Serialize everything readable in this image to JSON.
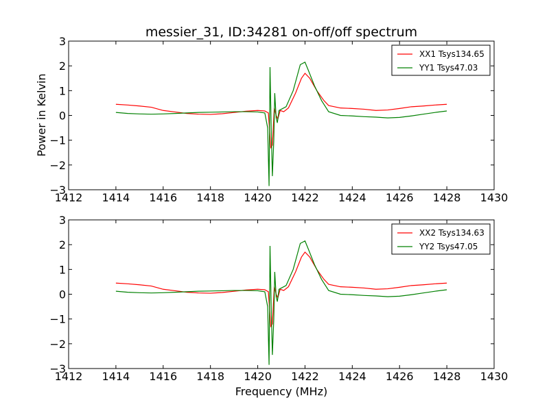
{
  "title": "messier_31, ID:34281 on-off/off spectrum",
  "ylabel": "Power in Kelvin",
  "xlabel": "Frequency (MHz)",
  "chart_data": [
    {
      "type": "line",
      "xlim": [
        1412,
        1430
      ],
      "ylim": [
        -3,
        3
      ],
      "xticks": [
        1412,
        1414,
        1416,
        1418,
        1420,
        1422,
        1424,
        1426,
        1428,
        1430
      ],
      "yticks": [
        -3,
        -2,
        -1,
        0,
        1,
        2,
        3
      ],
      "xtick_labels": [
        "1412",
        "1414",
        "1416",
        "1418",
        "1420",
        "1422",
        "1424",
        "1426",
        "1428",
        "1430"
      ],
      "ytick_labels": [
        "−3",
        "−2",
        "−1",
        "0",
        "1",
        "2",
        "3"
      ],
      "legend_placement": "top-right",
      "series": [
        {
          "name": "XX1 Tsys134.65",
          "color": "#ff0000",
          "points": [
            [
              1414.0,
              0.45
            ],
            [
              1414.5,
              0.42
            ],
            [
              1415.0,
              0.38
            ],
            [
              1415.5,
              0.33
            ],
            [
              1416.0,
              0.2
            ],
            [
              1416.5,
              0.14
            ],
            [
              1417.0,
              0.08
            ],
            [
              1417.5,
              0.05
            ],
            [
              1418.0,
              0.04
            ],
            [
              1418.5,
              0.07
            ],
            [
              1419.0,
              0.12
            ],
            [
              1419.5,
              0.17
            ],
            [
              1420.0,
              0.2
            ],
            [
              1420.3,
              0.18
            ],
            [
              1420.45,
              0.1
            ],
            [
              1420.55,
              -1.3
            ],
            [
              1420.62,
              -1.2
            ],
            [
              1420.7,
              0.3
            ],
            [
              1420.78,
              0.0
            ],
            [
              1420.85,
              -0.15
            ],
            [
              1420.95,
              0.2
            ],
            [
              1421.1,
              0.15
            ],
            [
              1421.3,
              0.3
            ],
            [
              1421.6,
              0.9
            ],
            [
              1421.85,
              1.5
            ],
            [
              1422.0,
              1.7
            ],
            [
              1422.2,
              1.5
            ],
            [
              1422.5,
              1.0
            ],
            [
              1422.8,
              0.6
            ],
            [
              1423.0,
              0.4
            ],
            [
              1423.5,
              0.3
            ],
            [
              1424.0,
              0.28
            ],
            [
              1424.5,
              0.25
            ],
            [
              1425.0,
              0.2
            ],
            [
              1425.5,
              0.22
            ],
            [
              1426.0,
              0.28
            ],
            [
              1426.5,
              0.35
            ],
            [
              1427.0,
              0.38
            ],
            [
              1427.5,
              0.42
            ],
            [
              1428.0,
              0.45
            ]
          ]
        },
        {
          "name": "YY1 Tsys47.03",
          "color": "#008000",
          "points": [
            [
              1414.0,
              0.12
            ],
            [
              1414.5,
              0.08
            ],
            [
              1415.0,
              0.06
            ],
            [
              1415.5,
              0.05
            ],
            [
              1416.0,
              0.06
            ],
            [
              1416.5,
              0.08
            ],
            [
              1417.0,
              0.1
            ],
            [
              1417.5,
              0.12
            ],
            [
              1418.0,
              0.13
            ],
            [
              1418.5,
              0.14
            ],
            [
              1419.0,
              0.15
            ],
            [
              1419.5,
              0.15
            ],
            [
              1420.0,
              0.14
            ],
            [
              1420.3,
              0.1
            ],
            [
              1420.42,
              -0.5
            ],
            [
              1420.48,
              -2.85
            ],
            [
              1420.52,
              1.95
            ],
            [
              1420.57,
              -0.5
            ],
            [
              1420.62,
              -2.45
            ],
            [
              1420.68,
              -1.0
            ],
            [
              1420.72,
              0.9
            ],
            [
              1420.78,
              -0.1
            ],
            [
              1420.83,
              -0.3
            ],
            [
              1420.9,
              0.2
            ],
            [
              1421.0,
              0.25
            ],
            [
              1421.2,
              0.35
            ],
            [
              1421.5,
              1.0
            ],
            [
              1421.8,
              2.05
            ],
            [
              1422.0,
              2.15
            ],
            [
              1422.15,
              1.8
            ],
            [
              1422.4,
              1.2
            ],
            [
              1422.7,
              0.6
            ],
            [
              1423.0,
              0.15
            ],
            [
              1423.5,
              0.0
            ],
            [
              1424.0,
              -0.02
            ],
            [
              1424.5,
              -0.05
            ],
            [
              1425.0,
              -0.07
            ],
            [
              1425.5,
              -0.1
            ],
            [
              1426.0,
              -0.08
            ],
            [
              1426.5,
              -0.02
            ],
            [
              1427.0,
              0.05
            ],
            [
              1427.5,
              0.12
            ],
            [
              1428.0,
              0.18
            ]
          ]
        }
      ]
    },
    {
      "type": "line",
      "xlim": [
        1412,
        1430
      ],
      "ylim": [
        -3,
        3
      ],
      "xticks": [
        1412,
        1414,
        1416,
        1418,
        1420,
        1422,
        1424,
        1426,
        1428,
        1430
      ],
      "yticks": [
        -3,
        -2,
        -1,
        0,
        1,
        2,
        3
      ],
      "xtick_labels": [
        "1412",
        "1414",
        "1416",
        "1418",
        "1420",
        "1422",
        "1424",
        "1426",
        "1428",
        "1430"
      ],
      "ytick_labels": [
        "−3",
        "−2",
        "−1",
        "0",
        "1",
        "2",
        "3"
      ],
      "legend_placement": "top-right",
      "series": [
        {
          "name": "XX2 Tsys134.63",
          "color": "#ff0000",
          "points": [
            [
              1414.0,
              0.45
            ],
            [
              1414.5,
              0.42
            ],
            [
              1415.0,
              0.38
            ],
            [
              1415.5,
              0.33
            ],
            [
              1416.0,
              0.2
            ],
            [
              1416.5,
              0.14
            ],
            [
              1417.0,
              0.08
            ],
            [
              1417.5,
              0.05
            ],
            [
              1418.0,
              0.04
            ],
            [
              1418.5,
              0.07
            ],
            [
              1419.0,
              0.12
            ],
            [
              1419.5,
              0.17
            ],
            [
              1420.0,
              0.2
            ],
            [
              1420.3,
              0.18
            ],
            [
              1420.45,
              0.1
            ],
            [
              1420.55,
              -1.3
            ],
            [
              1420.62,
              -1.2
            ],
            [
              1420.7,
              0.3
            ],
            [
              1420.78,
              0.0
            ],
            [
              1420.85,
              -0.15
            ],
            [
              1420.95,
              0.2
            ],
            [
              1421.1,
              0.15
            ],
            [
              1421.3,
              0.3
            ],
            [
              1421.6,
              0.9
            ],
            [
              1421.85,
              1.5
            ],
            [
              1422.0,
              1.7
            ],
            [
              1422.2,
              1.5
            ],
            [
              1422.5,
              1.0
            ],
            [
              1422.8,
              0.6
            ],
            [
              1423.0,
              0.4
            ],
            [
              1423.5,
              0.3
            ],
            [
              1424.0,
              0.28
            ],
            [
              1424.5,
              0.25
            ],
            [
              1425.0,
              0.2
            ],
            [
              1425.5,
              0.22
            ],
            [
              1426.0,
              0.28
            ],
            [
              1426.5,
              0.35
            ],
            [
              1427.0,
              0.38
            ],
            [
              1427.5,
              0.42
            ],
            [
              1428.0,
              0.45
            ]
          ]
        },
        {
          "name": "YY2 Tsys47.05",
          "color": "#008000",
          "points": [
            [
              1414.0,
              0.12
            ],
            [
              1414.5,
              0.08
            ],
            [
              1415.0,
              0.06
            ],
            [
              1415.5,
              0.05
            ],
            [
              1416.0,
              0.06
            ],
            [
              1416.5,
              0.08
            ],
            [
              1417.0,
              0.1
            ],
            [
              1417.5,
              0.12
            ],
            [
              1418.0,
              0.13
            ],
            [
              1418.5,
              0.14
            ],
            [
              1419.0,
              0.15
            ],
            [
              1419.5,
              0.15
            ],
            [
              1420.0,
              0.14
            ],
            [
              1420.3,
              0.1
            ],
            [
              1420.42,
              -0.5
            ],
            [
              1420.48,
              -2.85
            ],
            [
              1420.52,
              1.95
            ],
            [
              1420.57,
              -0.5
            ],
            [
              1420.62,
              -2.45
            ],
            [
              1420.68,
              -1.0
            ],
            [
              1420.72,
              0.9
            ],
            [
              1420.78,
              -0.1
            ],
            [
              1420.83,
              -0.3
            ],
            [
              1420.9,
              0.2
            ],
            [
              1421.0,
              0.25
            ],
            [
              1421.2,
              0.35
            ],
            [
              1421.5,
              1.0
            ],
            [
              1421.8,
              2.05
            ],
            [
              1422.0,
              2.15
            ],
            [
              1422.15,
              1.8
            ],
            [
              1422.4,
              1.2
            ],
            [
              1422.7,
              0.6
            ],
            [
              1423.0,
              0.15
            ],
            [
              1423.5,
              0.0
            ],
            [
              1424.0,
              -0.02
            ],
            [
              1424.5,
              -0.05
            ],
            [
              1425.0,
              -0.07
            ],
            [
              1425.5,
              -0.1
            ],
            [
              1426.0,
              -0.08
            ],
            [
              1426.5,
              -0.02
            ],
            [
              1427.0,
              0.05
            ],
            [
              1427.5,
              0.12
            ],
            [
              1428.0,
              0.18
            ]
          ]
        }
      ]
    }
  ]
}
